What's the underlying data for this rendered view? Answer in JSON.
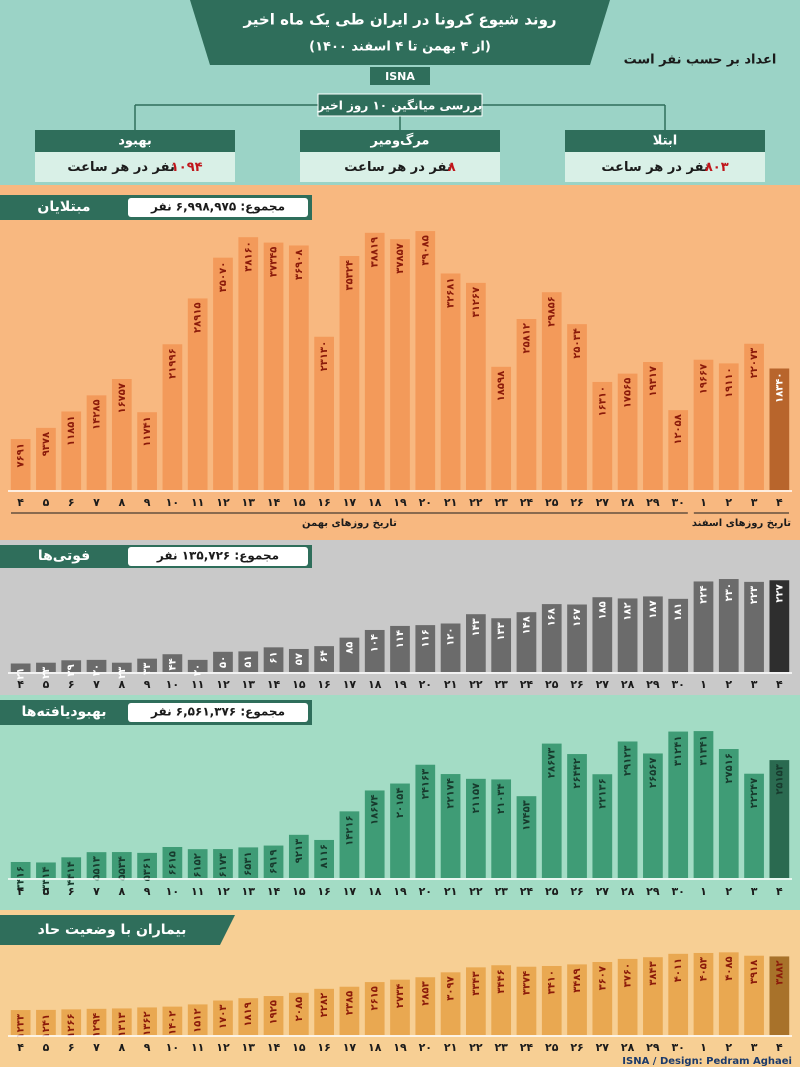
{
  "header": {
    "title": "روند شیوع کرونا در ایران طی یک ماه اخیر",
    "subtitle": "(از ۴ بهمن تا ۴ اسفند ۱۴۰۰)",
    "source": "ISNA",
    "note": "اعداد بر حسب نفر است"
  },
  "summary": {
    "title": "بررسی میانگین ۱۰ روز اخیر",
    "items": [
      {
        "label": "بهبود",
        "value": "۱۰۹۴",
        "unit": "نفر در هر ساعت"
      },
      {
        "label": "مرگ‌ومیر",
        "value": "۸",
        "unit": "نفر در هر ساعت"
      },
      {
        "label": "ابتلا",
        "value": "۸۰۳",
        "unit": "نفر در هر ساعت"
      }
    ]
  },
  "chart_data": [
    {
      "type": "bar",
      "title": "مبتلایان",
      "total": "مجموع: ۶,۹۹۸,۹۷۵ نفر",
      "color": "#f39a5a",
      "last_color": "#b8652c",
      "label_color": "#8b1a0a",
      "axis_labels": [
        "تاریخ روزهای بهمن",
        "تاریخ روزهای اسفند"
      ],
      "categories": [
        "۴",
        "۵",
        "۶",
        "۷",
        "۸",
        "۹",
        "۱۰",
        "۱۱",
        "۱۲",
        "۱۳",
        "۱۴",
        "۱۵",
        "۱۶",
        "۱۷",
        "۱۸",
        "۱۹",
        "۲۰",
        "۲۱",
        "۲۲",
        "۲۳",
        "۲۴",
        "۲۵",
        "۲۶",
        "۲۷",
        "۲۸",
        "۲۹",
        "۳۰",
        "۱",
        "۲",
        "۳",
        "۴"
      ],
      "values": [
        7691,
        9378,
        11851,
        14285,
        16757,
        11741,
        21996,
        28915,
        35070,
        38160,
        37345,
        36908,
        23130,
        35324,
        38819,
        37857,
        39085,
        32681,
        31267,
        18598,
        25812,
        29856,
        25034,
        16310,
        17565,
        19317,
        12058,
        19667,
        19110,
        22073,
        18340
      ],
      "value_labels": [
        "۷۶۹۱",
        "۹۳۷۸",
        "۱۱۸۵۱",
        "۱۴۲۸۵",
        "۱۶۷۵۷",
        "۱۱۷۴۱",
        "۲۱۹۹۶",
        "۲۸۹۱۵",
        "۳۵۰۷۰",
        "۳۸۱۶۰",
        "۳۷۳۴۵",
        "۳۶۹۰۸",
        "۲۳۱۳۰",
        "۳۵۳۲۴",
        "۳۸۸۱۹",
        "۳۷۸۵۷",
        "۳۹۰۸۵",
        "۳۲۶۸۱",
        "۳۱۲۶۷",
        "۱۸۵۹۸",
        "۲۵۸۱۲",
        "۲۹۸۵۶",
        "۲۵۰۳۴",
        "۱۶۳۱۰",
        "۱۷۵۶۵",
        "۱۹۳۱۷",
        "۱۲۰۵۸",
        "۱۹۶۶۷",
        "۱۹۱۱۰",
        "۲۲۰۷۳",
        "۱۸۳۴۰"
      ],
      "ylim": [
        0,
        40000
      ]
    },
    {
      "type": "bar",
      "title": "فوتی‌ها",
      "total": "مجموع: ۱۳۵,۷۲۶ نفر",
      "color": "#6b6b6b",
      "last_color": "#2e2e2e",
      "label_color": "#ffffff",
      "categories": [
        "۴",
        "۵",
        "۶",
        "۷",
        "۸",
        "۹",
        "۱۰",
        "۱۱",
        "۱۲",
        "۱۳",
        "۱۴",
        "۱۵",
        "۱۶",
        "۱۷",
        "۱۸",
        "۱۹",
        "۲۰",
        "۲۱",
        "۲۲",
        "۲۳",
        "۲۴",
        "۲۵",
        "۲۶",
        "۲۷",
        "۲۸",
        "۲۹",
        "۳۰",
        "۱",
        "۲",
        "۳",
        "۴"
      ],
      "values": [
        21,
        23,
        29,
        30,
        23,
        33,
        44,
        30,
        50,
        51,
        61,
        57,
        64,
        85,
        104,
        114,
        116,
        120,
        143,
        133,
        148,
        168,
        167,
        185,
        182,
        187,
        181,
        224,
        230,
        223,
        227
      ],
      "value_labels": [
        "۲۱",
        "۲۳",
        "۲۹",
        "۳۰",
        "۲۳",
        "۳۳",
        "۴۴",
        "۳۰",
        "۵۰",
        "۵۱",
        "۶۱",
        "۵۷",
        "۶۴",
        "۸۵",
        "۱۰۴",
        "۱۱۴",
        "۱۱۶",
        "۱۲۰",
        "۱۴۳",
        "۱۳۳",
        "۱۴۸",
        "۱۶۸",
        "۱۶۷",
        "۱۸۵",
        "۱۸۲",
        "۱۸۷",
        "۱۸۱",
        "۲۲۴",
        "۲۳۰",
        "۲۲۳",
        "۲۲۷"
      ],
      "ylim": [
        0,
        240
      ]
    },
    {
      "type": "bar",
      "title": "بهبودیافته‌ها",
      "total": "مجموع: ۶,۵۶۱,۳۷۶ نفر",
      "color": "#3f9c76",
      "last_color": "#2a6a50",
      "label_color": "#173a2d",
      "categories": [
        "۴",
        "۵",
        "۶",
        "۷",
        "۸",
        "۹",
        "۱۰",
        "۱۱",
        "۱۲",
        "۱۳",
        "۱۴",
        "۱۵",
        "۱۶",
        "۱۷",
        "۱۸",
        "۱۹",
        "۲۰",
        "۲۱",
        "۲۲",
        "۲۳",
        "۲۴",
        "۲۵",
        "۲۶",
        "۲۷",
        "۲۸",
        "۲۹",
        "۳۰",
        "۱",
        "۲",
        "۳",
        "۴"
      ],
      "values": [
        3416,
        3314,
        4414,
        5513,
        5534,
        5361,
        6615,
        6152,
        6173,
        6531,
        6919,
        9213,
        8116,
        14216,
        18674,
        20154,
        24163,
        22174,
        21157,
        21034,
        17453,
        28673,
        26442,
        22136,
        29123,
        26567,
        31241,
        31341,
        27516,
        22247,
        25153
      ],
      "value_labels": [
        "۳۴۱۶",
        "۳۳۱۴",
        "۴۴۱۴",
        "۵۵۱۳",
        "۵۵۳۴",
        "۵۳۶۱",
        "۶۶۱۵",
        "۶۱۵۲",
        "۶۱۷۳",
        "۶۵۳۱",
        "۶۹۱۹",
        "۹۲۱۳",
        "۸۱۱۶",
        "۱۴۲۱۶",
        "۱۸۶۷۴",
        "۲۰۱۵۴",
        "۲۴۱۶۳",
        "۲۲۱۷۴",
        "۲۱۱۵۷",
        "۲۱۰۳۴",
        "۱۷۴۵۳",
        "۲۸۶۷۳",
        "۲۶۴۴۲",
        "۲۲۱۳۶",
        "۲۹۱۲۳",
        "۲۶۵۶۷",
        "۳۱۲۴۱",
        "۳۱۳۴۱",
        "۲۷۵۱۶",
        "۲۲۲۴۷",
        "۲۵۱۵۳"
      ],
      "ylim": [
        0,
        32000
      ]
    },
    {
      "type": "bar",
      "title": "بیماران با وضعیت حاد",
      "color": "#e9a851",
      "last_color": "#a8722a",
      "label_color": "#8b1a0a",
      "categories": [
        "۴",
        "۵",
        "۶",
        "۷",
        "۸",
        "۹",
        "۱۰",
        "۱۱",
        "۱۲",
        "۱۳",
        "۱۴",
        "۱۵",
        "۱۶",
        "۱۷",
        "۱۸",
        "۱۹",
        "۲۰",
        "۲۱",
        "۲۲",
        "۲۳",
        "۲۴",
        "۲۵",
        "۲۶",
        "۲۷",
        "۲۸",
        "۲۹",
        "۳۰",
        "۱",
        "۲",
        "۳",
        "۴"
      ],
      "values": [
        1233,
        1241,
        1266,
        1294,
        1313,
        1362,
        1402,
        1512,
        1703,
        1819,
        1925,
        2085,
        2282,
        2385,
        2615,
        2734,
        2853,
        3097,
        3343,
        3446,
        3374,
        3410,
        3489,
        3607,
        3760,
        3843,
        4011,
        4053,
        4085,
        3918,
        3882
      ],
      "value_labels": [
        "۱۲۳۳",
        "۱۲۴۱",
        "۱۲۶۶",
        "۱۲۹۴",
        "۱۳۱۳",
        "۱۳۶۲",
        "۱۴۰۲",
        "۱۵۱۲",
        "۱۷۰۳",
        "۱۸۱۹",
        "۱۹۲۵",
        "۲۰۸۵",
        "۲۲۸۲",
        "۲۳۸۵",
        "۲۶۱۵",
        "۲۷۳۴",
        "۲۸۵۳",
        "۳۰۹۷",
        "۳۳۴۳",
        "۳۴۴۶",
        "۳۳۷۴",
        "۳۴۱۰",
        "۳۴۸۹",
        "۳۶۰۷",
        "۳۷۶۰",
        "۳۸۴۳",
        "۴۰۱۱",
        "۴۰۵۳",
        "۴۰۸۵",
        "۳۹۱۸",
        "۳۸۸۲"
      ],
      "ylim": [
        0,
        4200
      ]
    }
  ],
  "footer": {
    "credit": "ISNA / Design: Pedram Aghaei"
  }
}
